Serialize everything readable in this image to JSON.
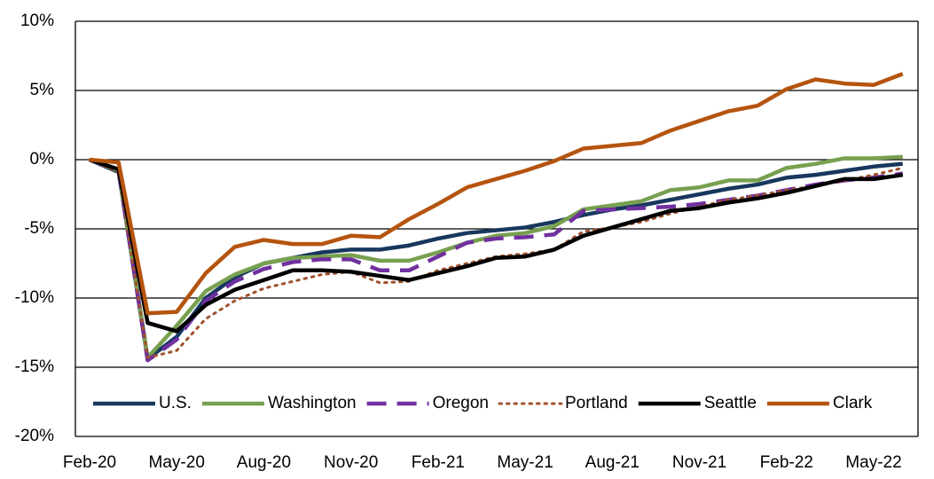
{
  "chart_data": {
    "type": "line",
    "categories": [
      "Feb-20",
      null,
      null,
      "May-20",
      null,
      null,
      "Aug-20",
      null,
      null,
      "Nov-20",
      null,
      null,
      "Feb-21",
      null,
      null,
      "May-21",
      null,
      null,
      "Aug-21",
      null,
      null,
      "Nov-21",
      null,
      null,
      "Feb-22",
      null,
      null,
      "May-22",
      null
    ],
    "ylim": [
      -20,
      10
    ],
    "yticks": [
      {
        "value": -20,
        "label": "-20%"
      },
      {
        "value": -15,
        "label": "-15%"
      },
      {
        "value": -10,
        "label": "-10%"
      },
      {
        "value": -5,
        "label": "-5%"
      },
      {
        "value": 0,
        "label": "0%"
      },
      {
        "value": 5,
        "label": "5%"
      },
      {
        "value": 10,
        "label": "10%"
      }
    ],
    "grid": true,
    "legend": "bottom",
    "series": [
      {
        "name": "U.S.",
        "color": "#17375e",
        "dash": "solid",
        "values": [
          0,
          -0.9,
          -14.4,
          -12.8,
          -10,
          -8.5,
          -7.5,
          -7.1,
          -6.7,
          -6.5,
          -6.5,
          -6.2,
          -5.7,
          -5.3,
          -5.1,
          -4.9,
          -4.5,
          -4.0,
          -3.6,
          -3.3,
          -2.9,
          -2.5,
          -2.1,
          -1.8,
          -1.3,
          -1.1,
          -0.8,
          -0.5,
          -0.3
        ]
      },
      {
        "name": "Washington",
        "color": "#77a04f",
        "dash": "solid",
        "values": [
          0,
          -0.8,
          -14.3,
          -12.0,
          -9.5,
          -8.3,
          -7.5,
          -7.1,
          -7.0,
          -6.9,
          -7.3,
          -7.3,
          -6.7,
          -6.0,
          -5.5,
          -5.3,
          -4.8,
          -3.6,
          -3.3,
          -3.0,
          -2.2,
          -2.0,
          -1.5,
          -1.5,
          -0.6,
          -0.3,
          0.1,
          0.1,
          0.2
        ]
      },
      {
        "name": "Oregon",
        "color": "#7030a0",
        "dash": "dash",
        "values": [
          0,
          -0.8,
          -14.5,
          -13.0,
          -10.2,
          -8.8,
          -7.9,
          -7.4,
          -7.2,
          -7.2,
          -8.0,
          -8.0,
          -7.0,
          -6.0,
          -5.7,
          -5.6,
          -5.4,
          -3.7,
          -3.6,
          -3.5,
          -3.4,
          -3.2,
          -2.9,
          -2.6,
          -2.2,
          -1.8,
          -1.5,
          -1.3,
          -1.0
        ]
      },
      {
        "name": "Portland",
        "color": "#a0522d",
        "dash": "dot",
        "values": [
          0,
          -0.9,
          -14.3,
          -13.8,
          -11.5,
          -10.2,
          -9.3,
          -8.8,
          -8.3,
          -8.1,
          -8.9,
          -8.8,
          -8.0,
          -7.5,
          -7.0,
          -6.8,
          -6.5,
          -5.2,
          -4.9,
          -4.5,
          -3.9,
          -3.4,
          -2.9,
          -2.6,
          -2.2,
          -1.9,
          -1.5,
          -1.1,
          -0.6
        ]
      },
      {
        "name": "Seattle",
        "color": "#000000",
        "dash": "solid",
        "values": [
          0,
          -0.7,
          -11.8,
          -12.4,
          -10.5,
          -9.4,
          -8.7,
          -8.0,
          -8.0,
          -8.1,
          -8.4,
          -8.7,
          -8.2,
          -7.7,
          -7.1,
          -7.0,
          -6.5,
          -5.5,
          -4.9,
          -4.3,
          -3.7,
          -3.5,
          -3.1,
          -2.8,
          -2.4,
          -1.9,
          -1.4,
          -1.4,
          -1.1
        ]
      },
      {
        "name": "Clark",
        "color": "#b5540f",
        "dash": "solid",
        "values": [
          0,
          -0.2,
          -11.1,
          -11.0,
          -8.2,
          -6.3,
          -5.8,
          -6.1,
          -6.1,
          -5.5,
          -5.6,
          -4.3,
          -3.2,
          -2.0,
          -1.4,
          -0.8,
          -0.1,
          0.8,
          1.0,
          1.2,
          2.1,
          2.8,
          3.5,
          3.9,
          5.1,
          5.8,
          5.5,
          5.4,
          6.2
        ]
      }
    ]
  }
}
